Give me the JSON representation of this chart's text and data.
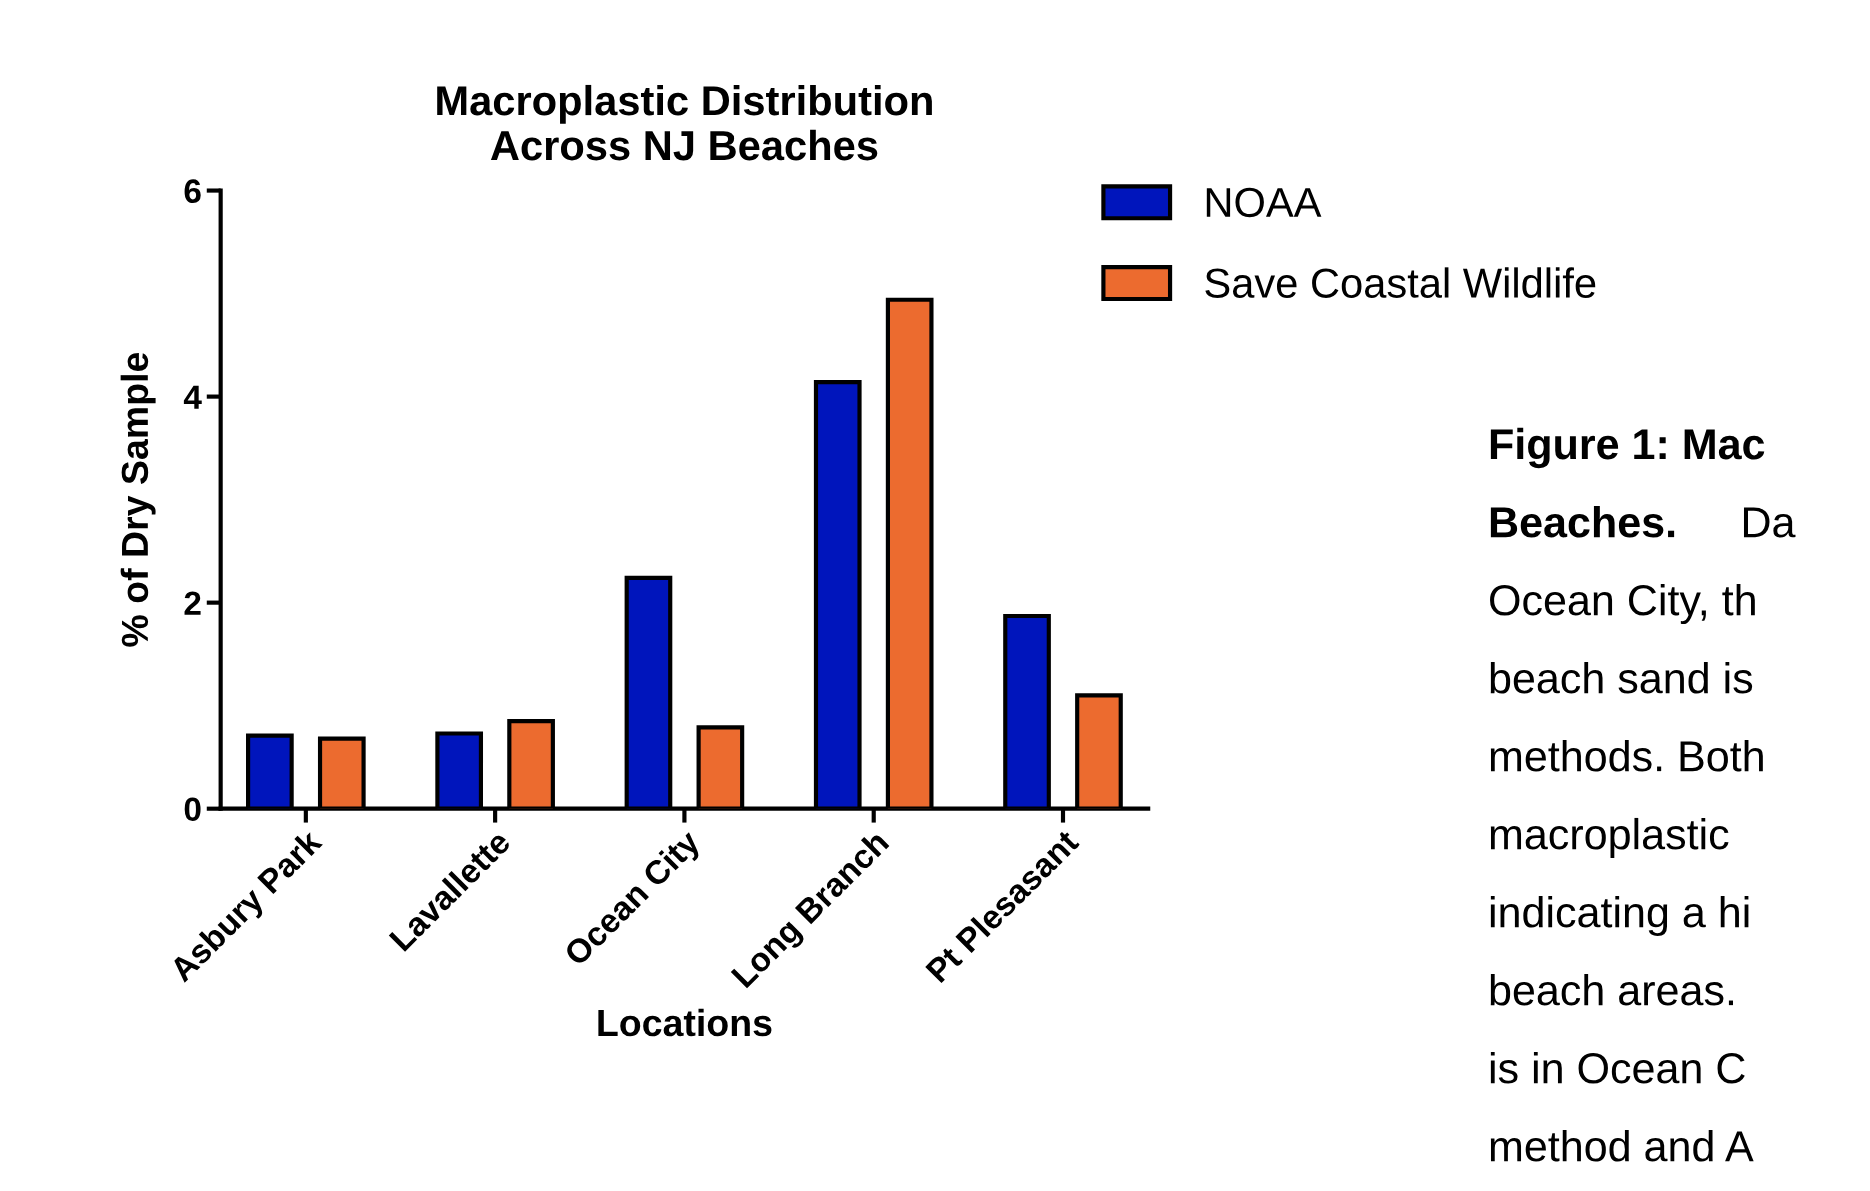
{
  "chart_data": {
    "type": "bar",
    "title": "Macroplastic Distribution\nAcross NJ Beaches",
    "xlabel": "Locations",
    "ylabel": "% of Dry Sample",
    "categories": [
      "Asbury Park",
      "Lavallette",
      "Ocean City",
      "Long Branch",
      "Pt Plesasant"
    ],
    "series": [
      {
        "name": "NOAA",
        "color": "#0015bc",
        "values": [
          0.71,
          0.73,
          2.24,
          4.14,
          1.87
        ]
      },
      {
        "name": "Save Coastal Wildlife",
        "color": "#ec6b2f",
        "values": [
          0.68,
          0.85,
          0.79,
          4.94,
          1.1
        ]
      }
    ],
    "ylim": [
      0,
      6
    ],
    "yticks": [
      0,
      2,
      4,
      6
    ],
    "grid": false,
    "legend": "right",
    "annotations": [
      "Figure 1: Mac",
      "Beaches.",
      "Da",
      "Ocean City, th",
      "beach sand is",
      "methods. Both",
      "macroplastic",
      "indicating a hi",
      "beach areas.",
      "is in Ocean C",
      "method and A"
    ]
  }
}
